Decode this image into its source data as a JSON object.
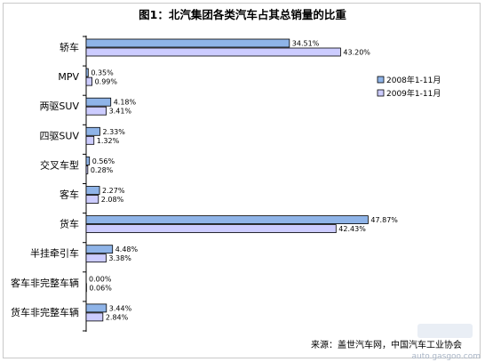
{
  "chart_data": {
    "type": "bar",
    "orientation": "horizontal",
    "title": "图1：北汽集团各类汽车占其总销量的比重",
    "categories": [
      "轿车",
      "MPV",
      "两驱SUV",
      "四驱SUV",
      "交叉车型",
      "客车",
      "货车",
      "半挂牵引车",
      "客车非完整车辆",
      "货车非完整车辆"
    ],
    "series": [
      {
        "name": "2008年1-11月",
        "color": "#8fb4e8",
        "values": [
          34.51,
          0.35,
          4.18,
          2.33,
          0.56,
          2.27,
          47.87,
          4.48,
          0.0,
          3.44
        ]
      },
      {
        "name": "2009年1-11月",
        "color": "#ccccff",
        "values": [
          43.2,
          0.99,
          3.41,
          1.32,
          0.28,
          2.08,
          42.43,
          3.38,
          0.06,
          2.84
        ]
      }
    ],
    "value_labels": [
      [
        "34.51%",
        "0.35%",
        "4.18%",
        "2.33%",
        "0.56%",
        "2.27%",
        "47.87%",
        "4.48%",
        "0.00%",
        "3.44%"
      ],
      [
        "43.20%",
        "0.99%",
        "3.41%",
        "1.32%",
        "0.28%",
        "2.08%",
        "42.43%",
        "3.38%",
        "0.06%",
        "2.84%"
      ]
    ],
    "xlim": [
      0,
      50
    ],
    "grid": false,
    "legend_position": "right",
    "source_note": "来源：盖世汽车网，中国汽车工业协会",
    "watermark": "auto.gasgoo.com"
  }
}
